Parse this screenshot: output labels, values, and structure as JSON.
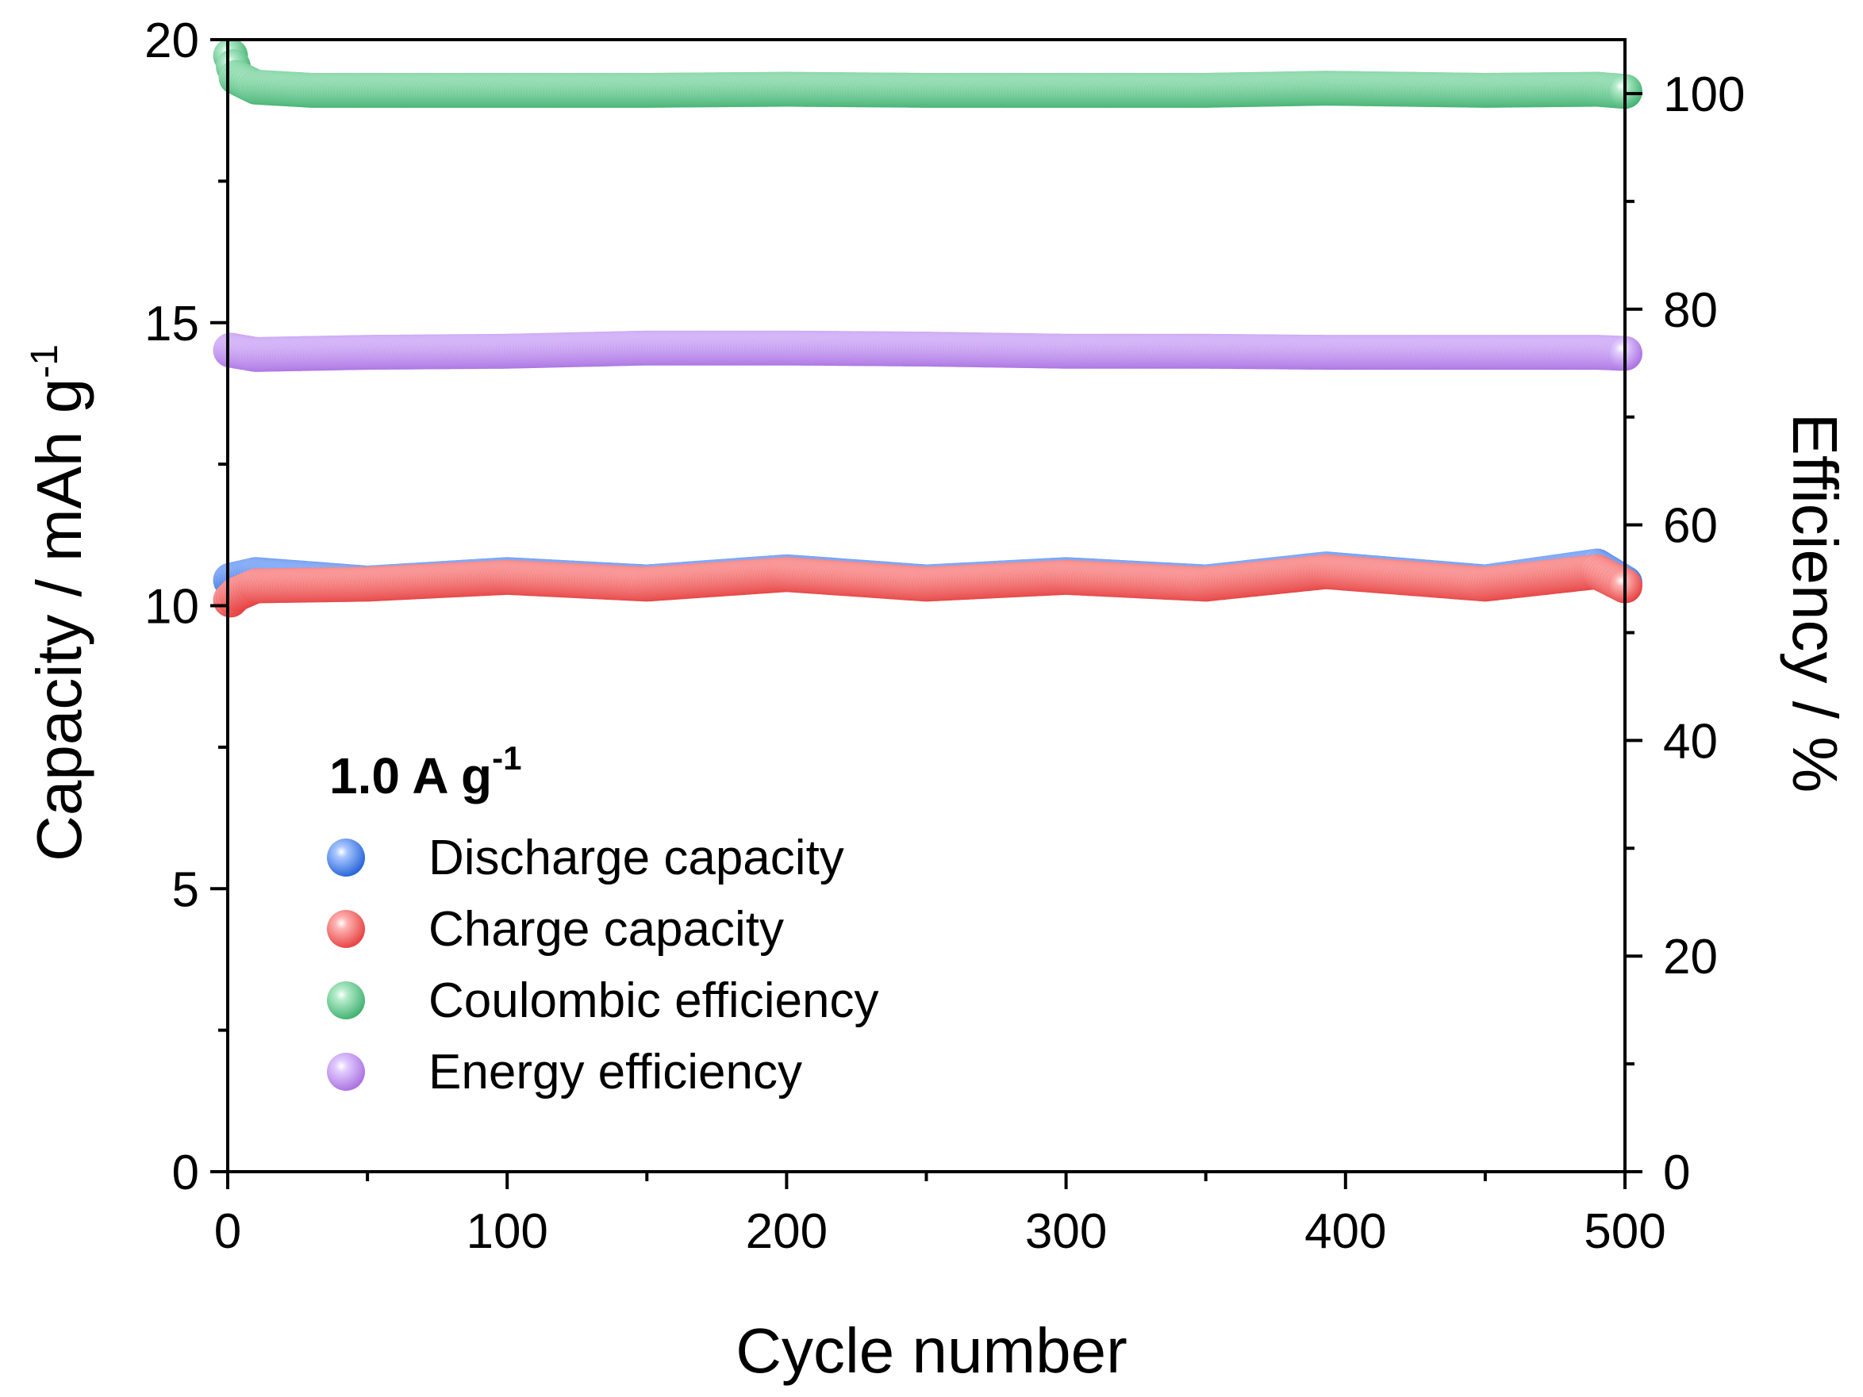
{
  "chart_data": {
    "type": "scatter",
    "xlabel": "Cycle number",
    "ylabel": "Capacity / mAh g",
    "ylabel_sup": "-1",
    "y2label": "Efficiency / %",
    "xlim": [
      0,
      500
    ],
    "ylim": [
      0,
      20
    ],
    "y2lim": [
      0,
      105
    ],
    "xticks": [
      "0",
      "100",
      "200",
      "300",
      "400",
      "500"
    ],
    "yticks": [
      "0",
      "5",
      "10",
      "15",
      "20"
    ],
    "y2ticks": [
      "0",
      "20",
      "40",
      "60",
      "80",
      "100"
    ],
    "legend_title": "1.0 A g",
    "legend_title_sup": "-1",
    "legend_position": "lower-left",
    "series": [
      {
        "name": "Discharge capacity",
        "axis": "left",
        "color": "#1f5fd6",
        "x": [
          1,
          10,
          50,
          100,
          150,
          200,
          250,
          300,
          350,
          393,
          450,
          490,
          500
        ],
        "values": [
          10.45,
          10.55,
          10.4,
          10.55,
          10.42,
          10.6,
          10.42,
          10.55,
          10.42,
          10.65,
          10.42,
          10.7,
          10.4
        ]
      },
      {
        "name": "Charge capacity",
        "axis": "left",
        "color": "#e53c3c",
        "x": [
          1,
          3,
          10,
          50,
          100,
          150,
          200,
          250,
          300,
          350,
          393,
          450,
          490,
          500
        ],
        "values": [
          10.1,
          10.2,
          10.35,
          10.38,
          10.5,
          10.38,
          10.55,
          10.38,
          10.5,
          10.38,
          10.6,
          10.38,
          10.6,
          10.35
        ]
      },
      {
        "name": "Coulombic efficiency",
        "axis": "right",
        "color": "#3cae6c",
        "x": [
          1,
          3,
          10,
          30,
          50,
          100,
          150,
          200,
          250,
          300,
          350,
          393,
          450,
          490,
          500
        ],
        "values": [
          103.5,
          101.5,
          100.6,
          100.3,
          100.3,
          100.3,
          100.3,
          100.4,
          100.3,
          100.3,
          100.3,
          100.5,
          100.3,
          100.4,
          100.2
        ]
      },
      {
        "name": "Energy efficiency",
        "axis": "right",
        "color": "#a86de0",
        "x": [
          1,
          10,
          50,
          100,
          150,
          200,
          250,
          300,
          350,
          393,
          450,
          490,
          500
        ],
        "values": [
          76.2,
          75.8,
          76.0,
          76.1,
          76.4,
          76.4,
          76.3,
          76.1,
          76.1,
          76.0,
          76.0,
          76.0,
          75.9
        ]
      }
    ]
  }
}
